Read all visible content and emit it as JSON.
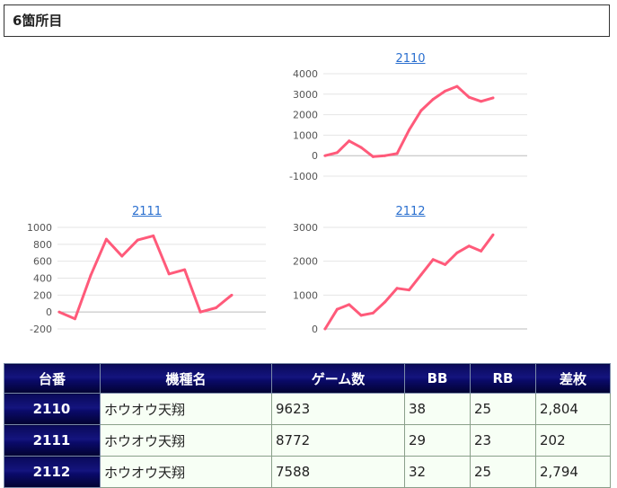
{
  "section_title": "6箇所目",
  "colors": {
    "line": "#ff5a7a",
    "link": "#2a6fcf",
    "header_bg": "#0a0a6a"
  },
  "chart_data": [
    {
      "type": "line",
      "title": "2110",
      "ylim": [
        -1000,
        4000
      ],
      "yticks": [
        4000,
        3000,
        2000,
        1000,
        0,
        -1000
      ],
      "values": [
        0,
        150,
        720,
        400,
        -50,
        0,
        100,
        1250,
        2200,
        2750,
        3150,
        3380,
        2850,
        2650,
        2820
      ],
      "grid": true
    },
    {
      "type": "line",
      "title": "2111",
      "ylim": [
        -200,
        1000
      ],
      "yticks": [
        1000,
        800,
        600,
        400,
        200,
        0,
        -200
      ],
      "values": [
        0,
        -80,
        430,
        860,
        660,
        850,
        900,
        450,
        500,
        0,
        50,
        200
      ],
      "grid": true
    },
    {
      "type": "line",
      "title": "2112",
      "ylim": [
        0,
        3000
      ],
      "yticks": [
        3000,
        2000,
        1000,
        0
      ],
      "values": [
        0,
        580,
        720,
        400,
        470,
        800,
        1200,
        1150,
        1600,
        2050,
        1900,
        2250,
        2450,
        2300,
        2780
      ],
      "grid": true
    }
  ],
  "table": {
    "headers": [
      "台番",
      "機種名",
      "ゲーム数",
      "BB",
      "RB",
      "差枚"
    ],
    "rows": [
      [
        "2110",
        "ホウオウ天翔",
        "9623",
        "38",
        "25",
        "2,804"
      ],
      [
        "2111",
        "ホウオウ天翔",
        "8772",
        "29",
        "23",
        "202"
      ],
      [
        "2112",
        "ホウオウ天翔",
        "7588",
        "32",
        "25",
        "2,794"
      ]
    ]
  }
}
